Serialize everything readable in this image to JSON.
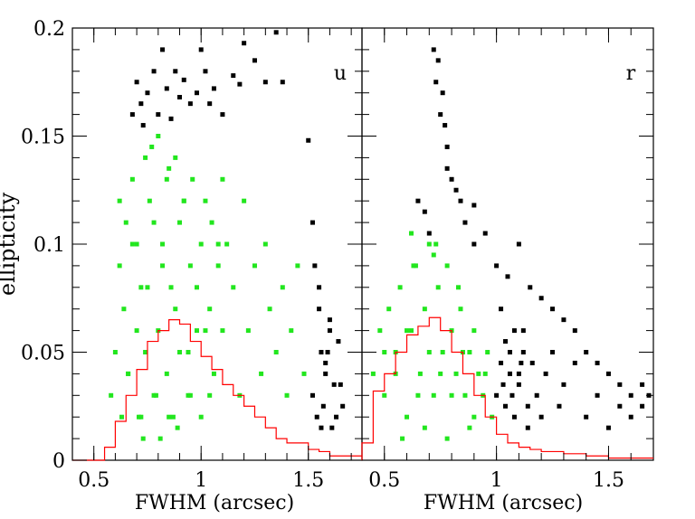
{
  "figure": {
    "ylabel": "ellipticity",
    "yticks": [
      {
        "value": 0,
        "label": "0"
      },
      {
        "value": 0.05,
        "label": "0.05"
      },
      {
        "value": 0.1,
        "label": "0.1"
      },
      {
        "value": 0.15,
        "label": "0.15"
      },
      {
        "value": 0.2,
        "label": "0.2"
      }
    ],
    "xticks": [
      {
        "value": 0.5,
        "label": "0.5"
      },
      {
        "value": 1.0,
        "label": "1"
      },
      {
        "value": 1.5,
        "label": "1.5"
      }
    ]
  },
  "chart_data": [
    {
      "type": "scatter",
      "panel_label": "u",
      "xlabel": "FWHM (arcsec)",
      "ylabel": "ellipticity",
      "xlim": [
        0.4,
        1.75
      ],
      "ylim": [
        0,
        0.2
      ],
      "grid": false,
      "colors": {
        "selected": "#22e61e",
        "rejected": "#000000",
        "histogram": "#ff0000"
      },
      "series": [
        {
          "role": "selected",
          "color": "#22e61e",
          "x": [
            0.58,
            0.6,
            0.62,
            0.63,
            0.64,
            0.65,
            0.66,
            0.68,
            0.7,
            0.7,
            0.72,
            0.74,
            0.75,
            0.76,
            0.78,
            0.8,
            0.8,
            0.82,
            0.84,
            0.85,
            0.86,
            0.88,
            0.9,
            0.9,
            0.92,
            0.94,
            0.95,
            0.96,
            0.98,
            1.0,
            1.0,
            1.02,
            1.04,
            1.05,
            1.06,
            1.08,
            1.1,
            1.1,
            1.12,
            1.15,
            1.18,
            1.2,
            1.22,
            1.25,
            1.28,
            1.3,
            1.32,
            1.35,
            1.38,
            1.4,
            1.42,
            1.45,
            1.48,
            0.62,
            0.68,
            0.72,
            0.78,
            0.82,
            0.88,
            0.92,
            0.98,
            1.02,
            1.08,
            0.66,
            0.74,
            0.84,
            0.94,
            1.04,
            0.71,
            0.79,
            0.87,
            0.95,
            0.73,
            0.81,
            0.89,
            0.77,
            0.85
          ],
          "y": [
            0.03,
            0.05,
            0.09,
            0.02,
            0.07,
            0.11,
            0.04,
            0.13,
            0.06,
            0.1,
            0.02,
            0.14,
            0.08,
            0.12,
            0.03,
            0.15,
            0.06,
            0.1,
            0.13,
            0.02,
            0.08,
            0.14,
            0.05,
            0.11,
            0.12,
            0.03,
            0.09,
            0.13,
            0.06,
            0.1,
            0.02,
            0.12,
            0.07,
            0.11,
            0.04,
            0.09,
            0.13,
            0.06,
            0.1,
            0.08,
            0.03,
            0.12,
            0.06,
            0.09,
            0.04,
            0.1,
            0.07,
            0.05,
            0.08,
            0.03,
            0.06,
            0.09,
            0.04,
            0.12,
            0.1,
            0.08,
            0.11,
            0.09,
            0.07,
            0.12,
            0.08,
            0.06,
            0.1,
            0.04,
            0.05,
            0.04,
            0.05,
            0.03,
            0.02,
            0.03,
            0.02,
            0.03,
            0.01,
            0.01,
            0.015,
            0.145,
            0.135
          ]
        },
        {
          "role": "rejected",
          "color": "#000000",
          "x": [
            0.68,
            0.7,
            0.72,
            0.73,
            0.75,
            0.78,
            0.8,
            0.82,
            0.84,
            0.86,
            0.88,
            0.9,
            0.92,
            0.95,
            0.98,
            1.0,
            1.02,
            1.04,
            1.06,
            1.1,
            1.15,
            1.18,
            1.2,
            1.25,
            1.3,
            1.35,
            1.38,
            1.5,
            1.52,
            1.53,
            1.55,
            1.56,
            1.58,
            1.6,
            1.62,
            1.64,
            1.66,
            1.52,
            1.54,
            1.56,
            1.58,
            1.6,
            1.63,
            1.65,
            1.55,
            1.57,
            1.59,
            1.61
          ],
          "y": [
            0.16,
            0.175,
            0.165,
            0.155,
            0.17,
            0.18,
            0.16,
            0.19,
            0.172,
            0.158,
            0.18,
            0.168,
            0.176,
            0.165,
            0.17,
            0.19,
            0.18,
            0.165,
            0.172,
            0.16,
            0.178,
            0.174,
            0.193,
            0.185,
            0.175,
            0.198,
            0.175,
            0.148,
            0.11,
            0.09,
            0.07,
            0.05,
            0.04,
            0.065,
            0.035,
            0.055,
            0.025,
            0.03,
            0.02,
            0.015,
            0.045,
            0.06,
            0.02,
            0.035,
            0.08,
            0.025,
            0.05,
            0.015
          ]
        }
      ],
      "histogram": {
        "bin_edges": [
          0.4,
          0.5,
          0.55,
          0.6,
          0.65,
          0.7,
          0.75,
          0.8,
          0.85,
          0.9,
          0.95,
          1.0,
          1.05,
          1.1,
          1.15,
          1.2,
          1.25,
          1.3,
          1.35,
          1.4,
          1.5,
          1.55,
          1.6,
          1.75
        ],
        "values": [
          0,
          0,
          0.006,
          0.018,
          0.03,
          0.042,
          0.055,
          0.06,
          0.065,
          0.063,
          0.055,
          0.048,
          0.042,
          0.035,
          0.03,
          0.025,
          0.02,
          0.015,
          0.01,
          0.008,
          0.005,
          0.004,
          0.002
        ]
      }
    },
    {
      "type": "scatter",
      "panel_label": "r",
      "xlabel": "FWHM (arcsec)",
      "ylabel": "",
      "xlim": [
        0.4,
        1.7
      ],
      "ylim": [
        0,
        0.2
      ],
      "grid": false,
      "colors": {
        "selected": "#22e61e",
        "rejected": "#000000",
        "histogram": "#ff0000"
      },
      "series": [
        {
          "role": "selected",
          "color": "#22e61e",
          "x": [
            0.45,
            0.48,
            0.5,
            0.52,
            0.55,
            0.57,
            0.6,
            0.62,
            0.64,
            0.66,
            0.68,
            0.7,
            0.72,
            0.74,
            0.76,
            0.78,
            0.8,
            0.82,
            0.84,
            0.86,
            0.88,
            0.9,
            0.92,
            0.94,
            0.96,
            0.98,
            0.5,
            0.55,
            0.6,
            0.65,
            0.7,
            0.75,
            0.8,
            0.85,
            0.9,
            0.95,
            0.58,
            0.68,
            0.78,
            0.88,
            0.63,
            0.73,
            0.83,
            0.62,
            0.72
          ],
          "y": [
            0.04,
            0.06,
            0.03,
            0.07,
            0.05,
            0.08,
            0.02,
            0.06,
            0.09,
            0.04,
            0.07,
            0.1,
            0.03,
            0.08,
            0.05,
            0.09,
            0.06,
            0.04,
            0.07,
            0.03,
            0.05,
            0.06,
            0.04,
            0.03,
            0.05,
            0.02,
            0.05,
            0.04,
            0.06,
            0.03,
            0.05,
            0.04,
            0.03,
            0.05,
            0.02,
            0.04,
            0.01,
            0.015,
            0.01,
            0.015,
            0.09,
            0.1,
            0.08,
            0.105,
            0.095
          ]
        },
        {
          "role": "rejected",
          "color": "#000000",
          "x": [
            0.72,
            0.73,
            0.74,
            0.75,
            0.76,
            0.77,
            0.78,
            0.8,
            0.82,
            0.84,
            0.86,
            0.9,
            0.95,
            1.0,
            1.05,
            1.1,
            1.15,
            1.2,
            1.25,
            1.3,
            1.35,
            1.4,
            1.45,
            1.5,
            1.55,
            1.6,
            1.65,
            0.65,
            0.68,
            0.7,
            0.78,
            0.9,
            1.02,
            1.04,
            1.06,
            1.08,
            1.1,
            1.12,
            1.14,
            1.16,
            1.18,
            1.2,
            1.22,
            1.25,
            1.28,
            1.3,
            1.35,
            1.4,
            1.45,
            1.5,
            1.55,
            1.6,
            1.65,
            1.68,
            1.0,
            1.02,
            1.04,
            1.06,
            1.08,
            1.1,
            1.12,
            1.14,
            1.03,
            1.07,
            1.11
          ],
          "y": [
            0.19,
            0.175,
            0.185,
            0.16,
            0.17,
            0.155,
            0.145,
            0.13,
            0.125,
            0.12,
            0.11,
            0.1,
            0.105,
            0.09,
            0.085,
            0.1,
            0.08,
            0.075,
            0.07,
            0.065,
            0.06,
            0.05,
            0.045,
            0.04,
            0.035,
            0.03,
            0.025,
            0.12,
            0.115,
            0.105,
            0.135,
            0.118,
            0.07,
            0.055,
            0.04,
            0.06,
            0.035,
            0.05,
            0.025,
            0.045,
            0.03,
            0.02,
            0.04,
            0.05,
            0.025,
            0.035,
            0.045,
            0.02,
            0.03,
            0.015,
            0.025,
            0.02,
            0.035,
            0.03,
            0.03,
            0.045,
            0.025,
            0.05,
            0.02,
            0.04,
            0.06,
            0.015,
            0.035,
            0.03,
            0.045
          ]
        }
      ],
      "histogram": {
        "bin_edges": [
          0.4,
          0.45,
          0.5,
          0.55,
          0.6,
          0.65,
          0.7,
          0.75,
          0.8,
          0.85,
          0.9,
          0.95,
          1.0,
          1.05,
          1.1,
          1.15,
          1.2,
          1.3,
          1.4,
          1.5,
          1.6,
          1.7
        ],
        "values": [
          0.008,
          0.032,
          0.04,
          0.05,
          0.058,
          0.062,
          0.066,
          0.06,
          0.05,
          0.04,
          0.03,
          0.02,
          0.012,
          0.008,
          0.006,
          0.005,
          0.004,
          0.003,
          0.002,
          0.001,
          0.001
        ]
      }
    }
  ]
}
